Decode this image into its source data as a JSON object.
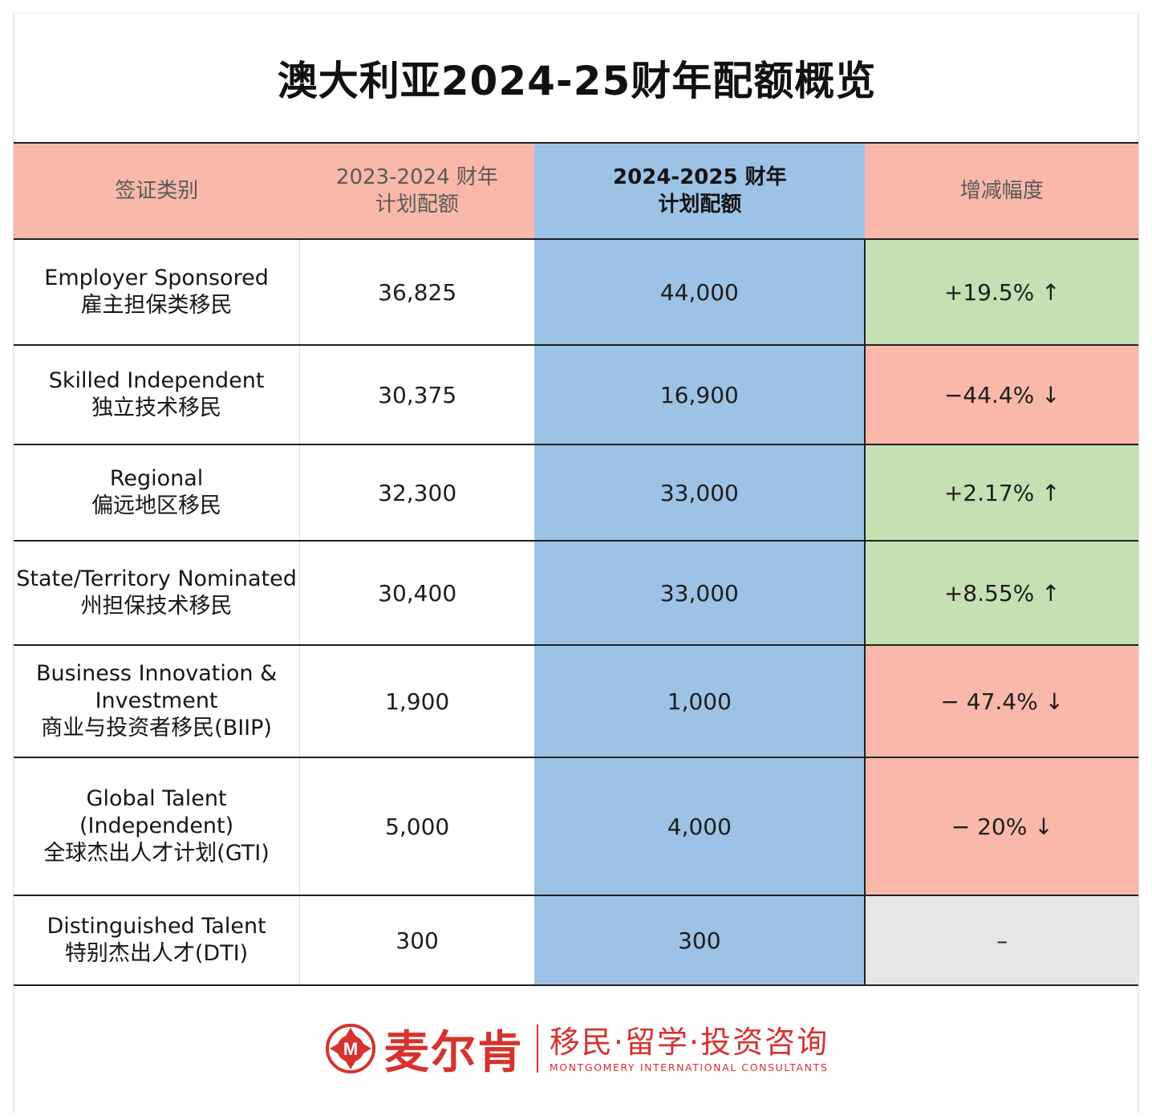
{
  "title": "澳大利亚2024-25财年配额概览",
  "headers": {
    "category": "签证类别",
    "prev_line1": "2023-2024 财年",
    "prev_line2": "计划配额",
    "curr_line1": "2024-2025 财年",
    "curr_line2": "计划配额",
    "change": "增减幅度"
  },
  "rows": [
    {
      "en": "Employer Sponsored",
      "cn": "雇主担保类移民",
      "prev": "36,825",
      "curr": "44,000",
      "change": "+19.5% ↑",
      "trend": "up"
    },
    {
      "en": "Skilled Independent",
      "cn": "独立技术移民",
      "prev": "30,375",
      "curr": "16,900",
      "change": "−44.4% ↓",
      "trend": "down"
    },
    {
      "en": "Regional",
      "cn": "偏远地区移民",
      "prev": "32,300",
      "curr": "33,000",
      "change": "+2.17% ↑",
      "trend": "up"
    },
    {
      "en": "State/Territory Nominated",
      "cn": "州担保技术移民",
      "prev": "30,400",
      "curr": "33,000",
      "change": "+8.55% ↑",
      "trend": "up"
    },
    {
      "en": "Business Innovation &",
      "en2": "Investment",
      "cn": "商业与投资者移民(BIIP)",
      "prev": "1,900",
      "curr": "1,000",
      "change": "− 47.4% ↓",
      "trend": "down"
    },
    {
      "en": "Global Talent",
      "en2": "(Independent)",
      "cn": "全球杰出人才计划(GTI)",
      "prev": "5,000",
      "curr": "4,000",
      "change": "− 20% ↓",
      "trend": "down"
    },
    {
      "en": "Distinguished Talent",
      "cn": "特别杰出人才(DTI)",
      "prev": "300",
      "curr": "300",
      "change": "–",
      "trend": "none"
    }
  ],
  "footer": {
    "brand_cn": "麦尔肯",
    "brand_sub": "移民·留学·投资咨询",
    "brand_en": "MONTGOMERY INTERNATIONAL CONSULTANTS",
    "logo_letter": "M"
  },
  "colors": {
    "header_pink": "#f9b8a9",
    "header_blue": "#9cc2e5",
    "increase_green": "#c5e0b3",
    "decrease_red": "#f9b8a9",
    "neutral_grey": "#e6e6e6",
    "brand_red": "#d7322d"
  }
}
